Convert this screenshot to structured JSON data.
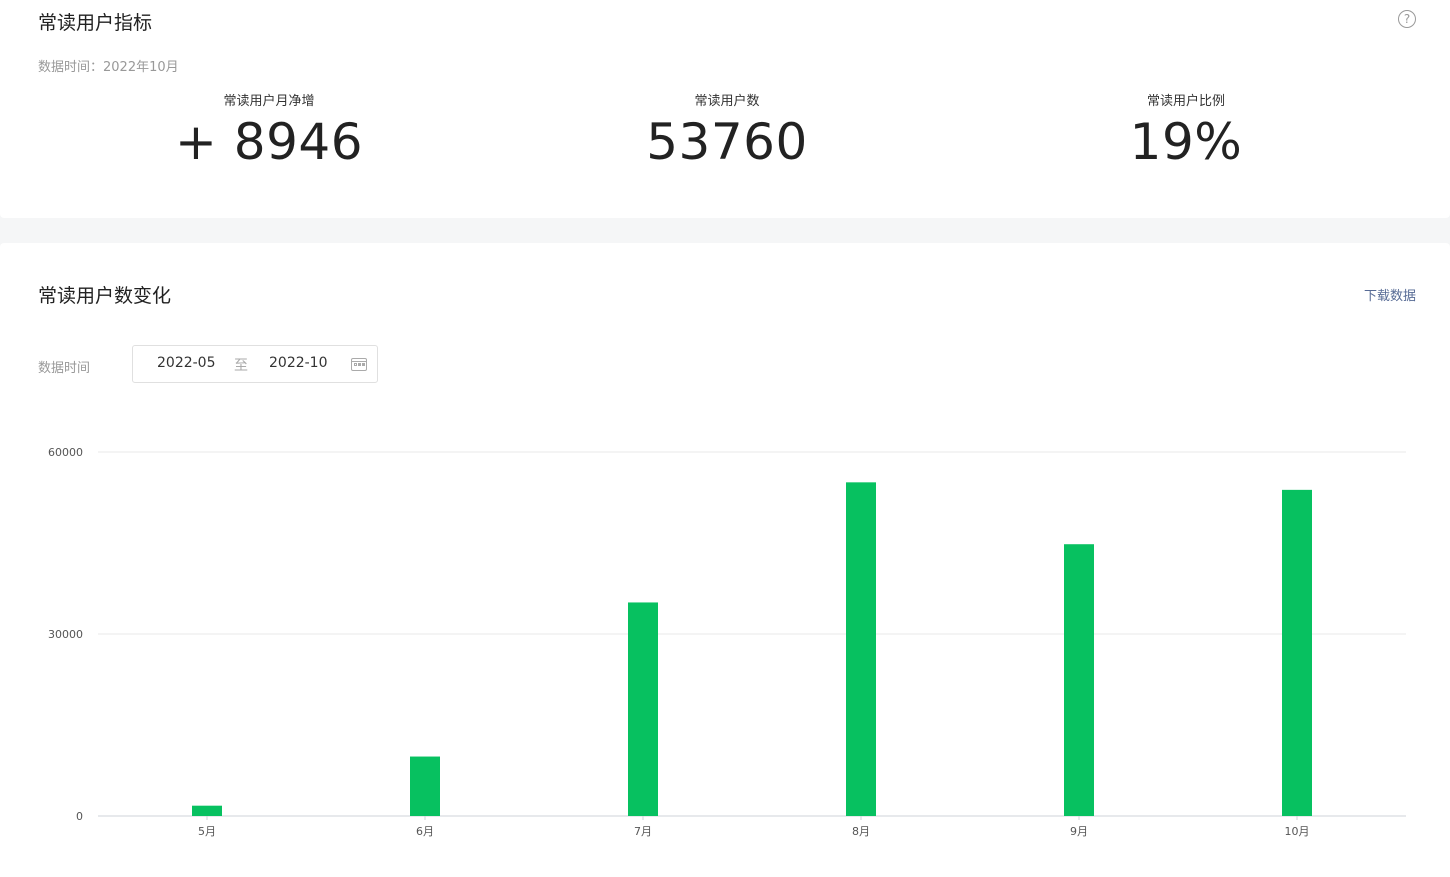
{
  "metrics_card": {
    "title": "常读用户指标",
    "help_icon": "question-circle-icon",
    "data_time_label": "数据时间：",
    "data_time_value": "2022年10月",
    "metrics": [
      {
        "label": "常读用户月净增",
        "value": "+ 8946"
      },
      {
        "label": "常读用户数",
        "value": "53760"
      },
      {
        "label": "常读用户比例",
        "value": "19%"
      }
    ]
  },
  "chart_card": {
    "title": "常读用户数变化",
    "download_label": "下载数据",
    "filter_label": "数据时间",
    "date_range": {
      "start": "2022-05",
      "separator": "至",
      "end": "2022-10",
      "icon": "calendar-icon"
    }
  },
  "chart_data": {
    "type": "bar",
    "categories": [
      "5月",
      "6月",
      "7月",
      "8月",
      "9月",
      "10月"
    ],
    "values": [
      1700,
      9800,
      35200,
      55000,
      44800,
      53760
    ],
    "ylim": [
      0,
      60000
    ],
    "yticks": [
      0,
      30000,
      60000
    ],
    "grid": true,
    "bar_color": "#07c160"
  }
}
